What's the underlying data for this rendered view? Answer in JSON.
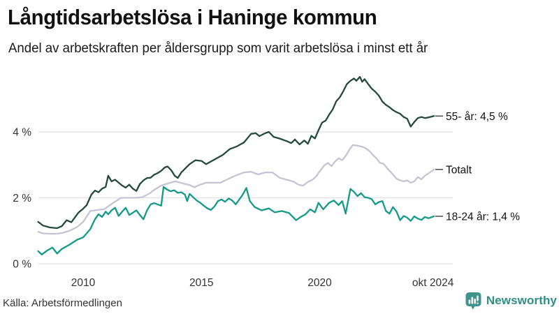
{
  "header": {
    "title": "Långtidsarbetslösa i Haninge kommun",
    "subtitle": "Andel av arbetskraften per åldersgrupp som varit arbetslösa i minst ett år"
  },
  "footer": {
    "source": "Källa: Arbetsförmedlingen",
    "brand": "Newsworthy"
  },
  "colors": {
    "series_55": "#24493f",
    "series_total": "#c6c4d4",
    "series_young": "#149a86",
    "grid": "#e4e4ea",
    "tick_text": "#333333",
    "end_label_text": "#111111",
    "end_dash": "#4a4a4a",
    "brand_teal": "#2f8f85",
    "brand_icon": "#3f948b"
  },
  "chart_data": {
    "type": "line",
    "title": "Långtidsarbetslösa i Haninge kommun",
    "subtitle": "Andel av arbetskraften per åldersgrupp som varit arbetslösa i minst ett år",
    "xlabel": "",
    "ylabel": "",
    "unit": "%",
    "x_range": [
      2008.1,
      2024.83
    ],
    "ylim": [
      0,
      5.8
    ],
    "grid": true,
    "legend_position": "right-end-labels",
    "yticks": [
      {
        "value": 0,
        "label": "0 %"
      },
      {
        "value": 2,
        "label": "2 %"
      },
      {
        "value": 4,
        "label": "4 %"
      }
    ],
    "xticks": [
      {
        "value": 2010,
        "label": "2010"
      },
      {
        "value": 2015,
        "label": "2015"
      },
      {
        "value": 2020,
        "label": "2020"
      },
      {
        "value": 2024.79,
        "label": "okt 2024"
      }
    ],
    "series": [
      {
        "name": "55- år",
        "end_label": "55- år: 4,5 %",
        "last_value_label": "4,5 %",
        "color": "#24493f",
        "points": [
          [
            2008.1,
            1.27
          ],
          [
            2008.3,
            1.16
          ],
          [
            2008.6,
            1.1
          ],
          [
            2008.9,
            1.08
          ],
          [
            2009.1,
            1.14
          ],
          [
            2009.3,
            1.32
          ],
          [
            2009.5,
            1.26
          ],
          [
            2009.8,
            1.55
          ],
          [
            2010.0,
            1.67
          ],
          [
            2010.15,
            1.78
          ],
          [
            2010.35,
            2.1
          ],
          [
            2010.5,
            2.22
          ],
          [
            2010.65,
            2.17
          ],
          [
            2010.8,
            2.28
          ],
          [
            2010.95,
            2.33
          ],
          [
            2011.06,
            2.67
          ],
          [
            2011.2,
            2.5
          ],
          [
            2011.35,
            2.55
          ],
          [
            2011.5,
            2.46
          ],
          [
            2011.65,
            2.37
          ],
          [
            2011.8,
            2.31
          ],
          [
            2011.95,
            2.4
          ],
          [
            2012.1,
            2.28
          ],
          [
            2012.25,
            2.21
          ],
          [
            2012.4,
            2.42
          ],
          [
            2012.55,
            2.53
          ],
          [
            2012.7,
            2.6
          ],
          [
            2012.85,
            2.61
          ],
          [
            2013.0,
            2.7
          ],
          [
            2013.15,
            2.75
          ],
          [
            2013.3,
            2.82
          ],
          [
            2013.45,
            2.92
          ],
          [
            2013.57,
            2.95
          ],
          [
            2013.72,
            2.84
          ],
          [
            2013.87,
            2.67
          ],
          [
            2014.0,
            2.6
          ],
          [
            2014.15,
            2.77
          ],
          [
            2014.3,
            2.88
          ],
          [
            2014.5,
            3.02
          ],
          [
            2014.75,
            3.14
          ],
          [
            2015.0,
            3.12
          ],
          [
            2015.2,
            3.02
          ],
          [
            2015.4,
            3.1
          ],
          [
            2015.65,
            3.2
          ],
          [
            2015.9,
            3.3
          ],
          [
            2016.2,
            3.48
          ],
          [
            2016.5,
            3.56
          ],
          [
            2016.8,
            3.68
          ],
          [
            2017.1,
            3.94
          ],
          [
            2017.3,
            3.96
          ],
          [
            2017.45,
            3.87
          ],
          [
            2017.7,
            3.96
          ],
          [
            2017.85,
            4.0
          ],
          [
            2018.05,
            3.85
          ],
          [
            2018.3,
            3.8
          ],
          [
            2018.6,
            3.72
          ],
          [
            2018.8,
            3.66
          ],
          [
            2018.95,
            3.77
          ],
          [
            2019.15,
            3.62
          ],
          [
            2019.35,
            3.74
          ],
          [
            2019.5,
            3.64
          ],
          [
            2019.65,
            3.88
          ],
          [
            2019.8,
            3.8
          ],
          [
            2019.95,
            4.05
          ],
          [
            2020.1,
            4.28
          ],
          [
            2020.25,
            4.34
          ],
          [
            2020.4,
            4.52
          ],
          [
            2020.55,
            4.68
          ],
          [
            2020.7,
            4.93
          ],
          [
            2020.85,
            5.05
          ],
          [
            2021.0,
            5.24
          ],
          [
            2021.15,
            5.45
          ],
          [
            2021.3,
            5.55
          ],
          [
            2021.45,
            5.62
          ],
          [
            2021.55,
            5.55
          ],
          [
            2021.7,
            5.67
          ],
          [
            2021.8,
            5.52
          ],
          [
            2021.9,
            5.6
          ],
          [
            2022.05,
            5.45
          ],
          [
            2022.2,
            5.31
          ],
          [
            2022.35,
            5.22
          ],
          [
            2022.5,
            5.1
          ],
          [
            2022.65,
            4.92
          ],
          [
            2022.8,
            4.82
          ],
          [
            2022.95,
            4.75
          ],
          [
            2023.1,
            4.66
          ],
          [
            2023.25,
            4.6
          ],
          [
            2023.4,
            4.55
          ],
          [
            2023.55,
            4.45
          ],
          [
            2023.7,
            4.4
          ],
          [
            2023.85,
            4.16
          ],
          [
            2024.0,
            4.3
          ],
          [
            2024.15,
            4.42
          ],
          [
            2024.3,
            4.45
          ],
          [
            2024.45,
            4.42
          ],
          [
            2024.6,
            4.44
          ],
          [
            2024.83,
            4.48
          ]
        ]
      },
      {
        "name": "Totalt",
        "end_label": "Totalt",
        "last_value_label": "",
        "color": "#c6c4d4",
        "points": [
          [
            2008.1,
            0.97
          ],
          [
            2008.3,
            0.92
          ],
          [
            2008.6,
            0.91
          ],
          [
            2008.9,
            0.91
          ],
          [
            2009.15,
            0.94
          ],
          [
            2009.45,
            1.01
          ],
          [
            2009.75,
            1.12
          ],
          [
            2010.0,
            1.27
          ],
          [
            2010.3,
            1.6
          ],
          [
            2010.6,
            1.63
          ],
          [
            2010.9,
            1.66
          ],
          [
            2011.1,
            1.76
          ],
          [
            2011.3,
            1.86
          ],
          [
            2011.6,
            2.0
          ],
          [
            2011.9,
            2.0
          ],
          [
            2012.2,
            2.0
          ],
          [
            2012.5,
            2.02
          ],
          [
            2012.8,
            2.13
          ],
          [
            2013.0,
            2.24
          ],
          [
            2013.3,
            2.37
          ],
          [
            2013.6,
            2.44
          ],
          [
            2013.9,
            2.5
          ],
          [
            2014.2,
            2.44
          ],
          [
            2014.5,
            2.39
          ],
          [
            2014.7,
            2.32
          ],
          [
            2014.95,
            2.4
          ],
          [
            2015.2,
            2.46
          ],
          [
            2015.5,
            2.46
          ],
          [
            2015.8,
            2.46
          ],
          [
            2016.1,
            2.56
          ],
          [
            2016.4,
            2.66
          ],
          [
            2016.8,
            2.77
          ],
          [
            2017.1,
            2.79
          ],
          [
            2017.4,
            2.71
          ],
          [
            2017.7,
            2.77
          ],
          [
            2018.0,
            2.77
          ],
          [
            2018.3,
            2.61
          ],
          [
            2018.6,
            2.55
          ],
          [
            2018.9,
            2.49
          ],
          [
            2019.1,
            2.4
          ],
          [
            2019.3,
            2.37
          ],
          [
            2019.5,
            2.48
          ],
          [
            2019.7,
            2.55
          ],
          [
            2019.85,
            2.65
          ],
          [
            2020.05,
            2.85
          ],
          [
            2020.2,
            2.99
          ],
          [
            2020.35,
            3.06
          ],
          [
            2020.5,
            2.96
          ],
          [
            2020.65,
            3.1
          ],
          [
            2020.8,
            3.2
          ],
          [
            2020.95,
            3.14
          ],
          [
            2021.1,
            3.27
          ],
          [
            2021.25,
            3.45
          ],
          [
            2021.4,
            3.6
          ],
          [
            2021.6,
            3.58
          ],
          [
            2021.8,
            3.55
          ],
          [
            2021.95,
            3.5
          ],
          [
            2022.1,
            3.42
          ],
          [
            2022.25,
            3.3
          ],
          [
            2022.4,
            3.2
          ],
          [
            2022.55,
            3.06
          ],
          [
            2022.7,
            3.03
          ],
          [
            2022.9,
            2.86
          ],
          [
            2023.1,
            2.71
          ],
          [
            2023.25,
            2.58
          ],
          [
            2023.4,
            2.53
          ],
          [
            2023.55,
            2.5
          ],
          [
            2023.7,
            2.53
          ],
          [
            2023.85,
            2.46
          ],
          [
            2024.0,
            2.5
          ],
          [
            2024.15,
            2.63
          ],
          [
            2024.3,
            2.56
          ],
          [
            2024.45,
            2.67
          ],
          [
            2024.6,
            2.74
          ],
          [
            2024.83,
            2.86
          ]
        ]
      },
      {
        "name": "18-24 år",
        "end_label": "18-24 år: 1,4 %",
        "last_value_label": "1,4 %",
        "color": "#149a86",
        "points": [
          [
            2008.1,
            0.38
          ],
          [
            2008.25,
            0.28
          ],
          [
            2008.5,
            0.41
          ],
          [
            2008.7,
            0.49
          ],
          [
            2008.9,
            0.31
          ],
          [
            2009.1,
            0.45
          ],
          [
            2009.45,
            0.59
          ],
          [
            2009.75,
            0.73
          ],
          [
            2010.0,
            0.8
          ],
          [
            2010.3,
            1.05
          ],
          [
            2010.5,
            1.35
          ],
          [
            2010.65,
            1.5
          ],
          [
            2010.8,
            1.42
          ],
          [
            2010.95,
            1.58
          ],
          [
            2011.06,
            1.5
          ],
          [
            2011.2,
            1.62
          ],
          [
            2011.35,
            1.7
          ],
          [
            2011.5,
            1.45
          ],
          [
            2011.65,
            1.58
          ],
          [
            2011.8,
            1.7
          ],
          [
            2011.95,
            1.48
          ],
          [
            2012.1,
            1.55
          ],
          [
            2012.25,
            1.62
          ],
          [
            2012.4,
            1.48
          ],
          [
            2012.55,
            1.35
          ],
          [
            2012.7,
            1.62
          ],
          [
            2012.85,
            1.8
          ],
          [
            2013.0,
            1.84
          ],
          [
            2013.15,
            1.8
          ],
          [
            2013.3,
            1.76
          ],
          [
            2013.4,
            2.33
          ],
          [
            2013.55,
            2.25
          ],
          [
            2013.7,
            2.2
          ],
          [
            2013.85,
            2.23
          ],
          [
            2014.0,
            2.15
          ],
          [
            2014.15,
            2.17
          ],
          [
            2014.3,
            2.1
          ],
          [
            2014.4,
            1.9
          ],
          [
            2014.5,
            2.12
          ],
          [
            2014.65,
            2.02
          ],
          [
            2014.8,
            1.92
          ],
          [
            2014.95,
            1.85
          ],
          [
            2015.1,
            1.76
          ],
          [
            2015.25,
            1.68
          ],
          [
            2015.4,
            1.63
          ],
          [
            2015.55,
            1.74
          ],
          [
            2015.7,
            1.9
          ],
          [
            2015.85,
            1.95
          ],
          [
            2016.0,
            1.88
          ],
          [
            2016.15,
            1.98
          ],
          [
            2016.3,
            1.92
          ],
          [
            2016.45,
            1.8
          ],
          [
            2016.6,
            1.95
          ],
          [
            2016.75,
            2.1
          ],
          [
            2016.9,
            2.3
          ],
          [
            2017.05,
            1.9
          ],
          [
            2017.25,
            1.72
          ],
          [
            2017.55,
            1.62
          ],
          [
            2017.85,
            1.68
          ],
          [
            2018.1,
            1.56
          ],
          [
            2018.4,
            1.6
          ],
          [
            2018.7,
            1.54
          ],
          [
            2019.0,
            1.32
          ],
          [
            2019.2,
            1.42
          ],
          [
            2019.4,
            1.5
          ],
          [
            2019.6,
            1.65
          ],
          [
            2019.8,
            1.56
          ],
          [
            2019.95,
            1.85
          ],
          [
            2020.15,
            1.65
          ],
          [
            2020.4,
            1.85
          ],
          [
            2020.6,
            1.92
          ],
          [
            2020.8,
            1.78
          ],
          [
            2020.95,
            1.9
          ],
          [
            2021.1,
            1.52
          ],
          [
            2021.3,
            2.27
          ],
          [
            2021.45,
            2.18
          ],
          [
            2021.6,
            2.05
          ],
          [
            2021.75,
            2.14
          ],
          [
            2021.9,
            2.02
          ],
          [
            2022.05,
            2.0
          ],
          [
            2022.2,
            1.96
          ],
          [
            2022.35,
            1.8
          ],
          [
            2022.5,
            1.87
          ],
          [
            2022.65,
            1.9
          ],
          [
            2022.8,
            1.6
          ],
          [
            2022.95,
            1.52
          ],
          [
            2023.1,
            1.72
          ],
          [
            2023.25,
            1.58
          ],
          [
            2023.4,
            1.32
          ],
          [
            2023.55,
            1.45
          ],
          [
            2023.7,
            1.4
          ],
          [
            2023.85,
            1.3
          ],
          [
            2024.0,
            1.44
          ],
          [
            2024.15,
            1.37
          ],
          [
            2024.3,
            1.33
          ],
          [
            2024.45,
            1.42
          ],
          [
            2024.6,
            1.38
          ],
          [
            2024.83,
            1.44
          ]
        ]
      }
    ]
  }
}
